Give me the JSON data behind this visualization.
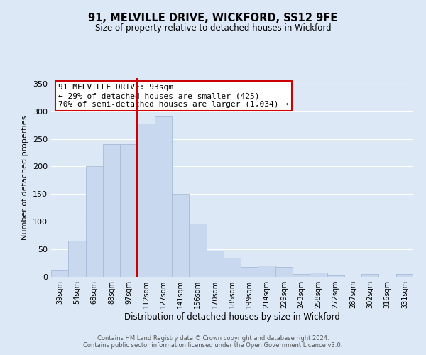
{
  "title": "91, MELVILLE DRIVE, WICKFORD, SS12 9FE",
  "subtitle": "Size of property relative to detached houses in Wickford",
  "xlabel": "Distribution of detached houses by size in Wickford",
  "ylabel": "Number of detached properties",
  "categories": [
    "39sqm",
    "54sqm",
    "68sqm",
    "83sqm",
    "97sqm",
    "112sqm",
    "127sqm",
    "141sqm",
    "156sqm",
    "170sqm",
    "185sqm",
    "199sqm",
    "214sqm",
    "229sqm",
    "243sqm",
    "258sqm",
    "272sqm",
    "287sqm",
    "302sqm",
    "316sqm",
    "331sqm"
  ],
  "values": [
    13,
    65,
    200,
    240,
    240,
    278,
    290,
    150,
    97,
    48,
    35,
    18,
    20,
    18,
    5,
    8,
    2,
    0,
    5,
    0,
    5
  ],
  "bar_color": "#c8d8ee",
  "bar_edge_color": "#a8bcd8",
  "vline_x_index": 4,
  "vline_color": "#cc0000",
  "annotation_text": "91 MELVILLE DRIVE: 93sqm\n← 29% of detached houses are smaller (425)\n70% of semi-detached houses are larger (1,034) →",
  "annotation_box_color": "#ffffff",
  "annotation_box_edge_color": "#cc0000",
  "ylim": [
    0,
    360
  ],
  "yticks": [
    0,
    50,
    100,
    150,
    200,
    250,
    300,
    350
  ],
  "bg_color": "#dce8f5",
  "plot_bg_color": "#dce8f5",
  "footer_line1": "Contains HM Land Registry data © Crown copyright and database right 2024.",
  "footer_line2": "Contains public sector information licensed under the Open Government Licence v3.0.",
  "bar_width": 1.0
}
